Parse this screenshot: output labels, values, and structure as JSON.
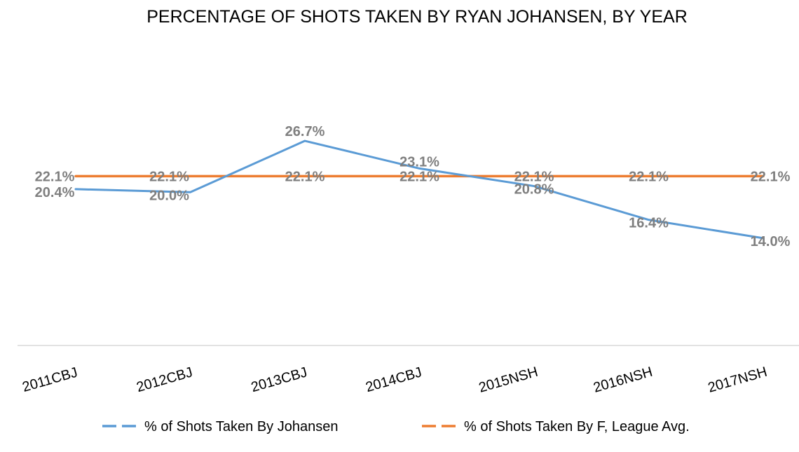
{
  "chart_data": {
    "type": "line",
    "title": "PERCENTAGE OF SHOTS TAKEN BY RYAN JOHANSEN, BY YEAR",
    "xlabel": "",
    "ylabel": "",
    "categories": [
      "2011CBJ",
      "2012CBJ",
      "2013CBJ",
      "2014CBJ",
      "2015NSH",
      "2016NSH",
      "2017NSH"
    ],
    "ylim": [
      0,
      30
    ],
    "grid": false,
    "legend_position": "bottom",
    "series": [
      {
        "name": "% of Shots Taken By Johansen",
        "color": "#5b9bd5",
        "values": [
          20.4,
          20.0,
          26.7,
          23.1,
          20.8,
          16.4,
          14.0
        ],
        "labels": [
          "20.4%",
          "20.0%",
          "26.7%",
          "23.1%",
          "20.8%",
          "16.4%",
          "14.0%"
        ]
      },
      {
        "name": "% of Shots Taken By F, League Avg.",
        "color": "#ed7d31",
        "values": [
          22.1,
          22.1,
          22.1,
          22.1,
          22.1,
          22.1,
          22.1
        ],
        "labels": [
          "22.1%",
          "22.1%",
          "22.1%",
          "22.1%",
          "22.1%",
          "22.1%",
          "22.1%"
        ]
      }
    ]
  }
}
